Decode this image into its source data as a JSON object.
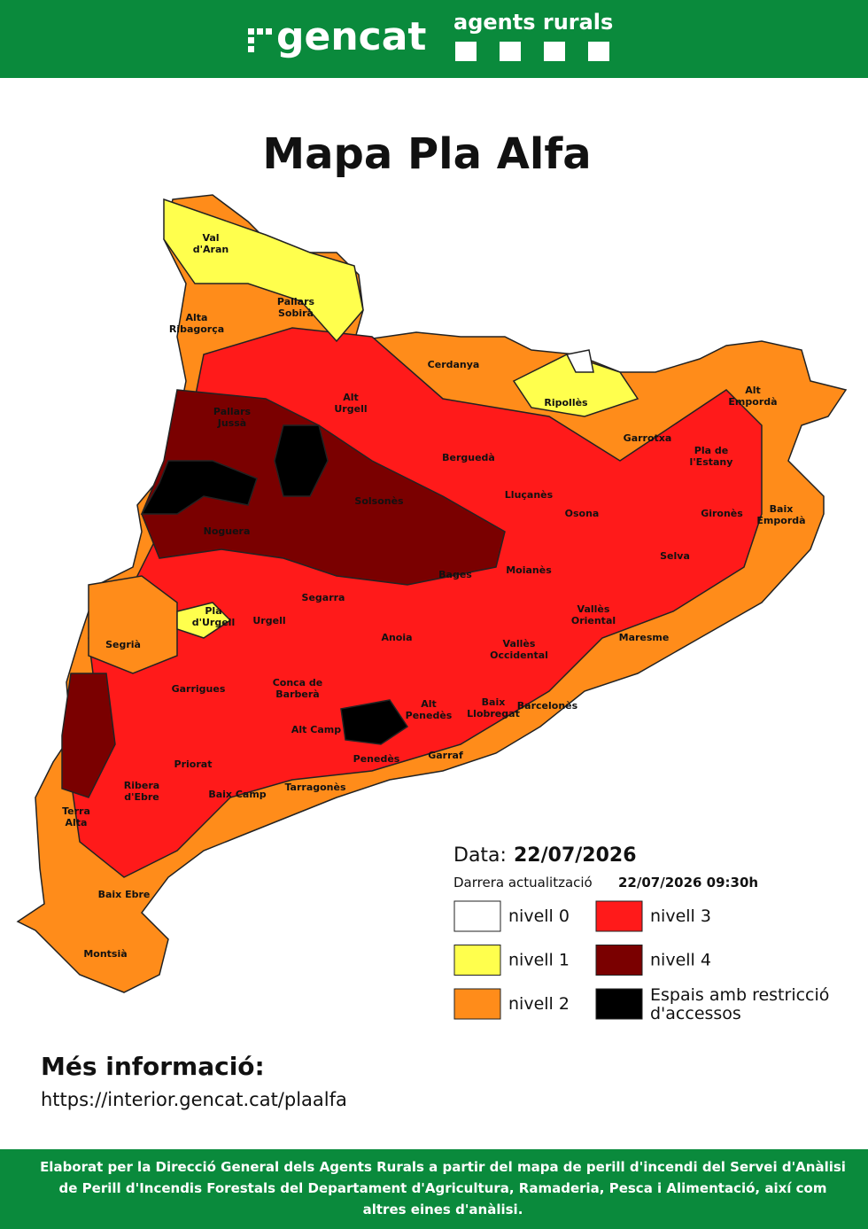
{
  "header": {
    "logo": "gencat",
    "brand": "agents rurals"
  },
  "title": "Mapa Pla Alfa",
  "map": {
    "labels": [
      [
        "Val",
        "d'Aran"
      ],
      [
        "Pallars",
        "Sobirà"
      ],
      [
        "Alta",
        "Ribagorça"
      ],
      [
        "Cerdanya"
      ],
      [
        "Ripollès"
      ],
      [
        "Alt",
        "Urgell"
      ],
      [
        "Alt",
        "Empordà"
      ],
      [
        "Pallars",
        "Jussà"
      ],
      [
        "Garrotxa"
      ],
      [
        "Berguedà"
      ],
      [
        "Pla de",
        "l'Estany"
      ],
      [
        "Solsonès"
      ],
      [
        "Lluçanès"
      ],
      [
        "Osona"
      ],
      [
        "Gironès"
      ],
      [
        "Baix",
        "Empordà"
      ],
      [
        "Noguera"
      ],
      [
        "Selva"
      ],
      [
        "Bages"
      ],
      [
        "Moianès"
      ],
      [
        "Segarra"
      ],
      [
        "Pla",
        "d'Urgell"
      ],
      [
        "Urgell"
      ],
      [
        "Vallès",
        "Oriental"
      ],
      [
        "Segrià"
      ],
      [
        "Anoia"
      ],
      [
        "Maresme"
      ],
      [
        "Vallès",
        "Occidental"
      ],
      [
        "Garrigues"
      ],
      [
        "Conca de",
        "Barberà"
      ],
      [
        "Alt",
        "Penedès"
      ],
      [
        "Baix",
        "Llobregat"
      ],
      [
        "Barcelonès"
      ],
      [
        "Alt Camp"
      ],
      [
        "Penedès"
      ],
      [
        "Garraf"
      ],
      [
        "Priorat"
      ],
      [
        "Ribera",
        "d'Ebre"
      ],
      [
        "Tarragonès"
      ],
      [
        "Baix Camp"
      ],
      [
        "Terra",
        "Alta"
      ],
      [
        "Baix Ebre"
      ],
      [
        "Montsià"
      ]
    ]
  },
  "legend": {
    "date_label": "Data:",
    "date": "22/07/2026",
    "update_label": "Darrera actualització",
    "update": "22/07/2026 09:30h",
    "items": [
      {
        "label": [
          "nivell 0"
        ],
        "color": "#ffffff"
      },
      {
        "label": [
          "nivell 1"
        ],
        "color": "#ffff4d"
      },
      {
        "label": [
          "nivell 2"
        ],
        "color": "#ff8c1a"
      },
      {
        "label": [
          "nivell 3"
        ],
        "color": "#ff1a1a"
      },
      {
        "label": [
          "nivell 4"
        ],
        "color": "#7a0000"
      },
      {
        "label": [
          "Espais amb restricció",
          "d'accessos"
        ],
        "color": "#000000"
      }
    ]
  },
  "info": {
    "title": "Més informació:",
    "url": "https://interior.gencat.cat/plaalfa"
  },
  "footer": "Elaborat per la Direcció General dels Agents Rurals a partir del mapa de perill d'incendi del Servei d'Anàlisi de Perill d'Incendis Forestals del Departament d'Agricultura, Ramaderia, Pesca i Alimentació, així com altres eines d'anàlisi."
}
